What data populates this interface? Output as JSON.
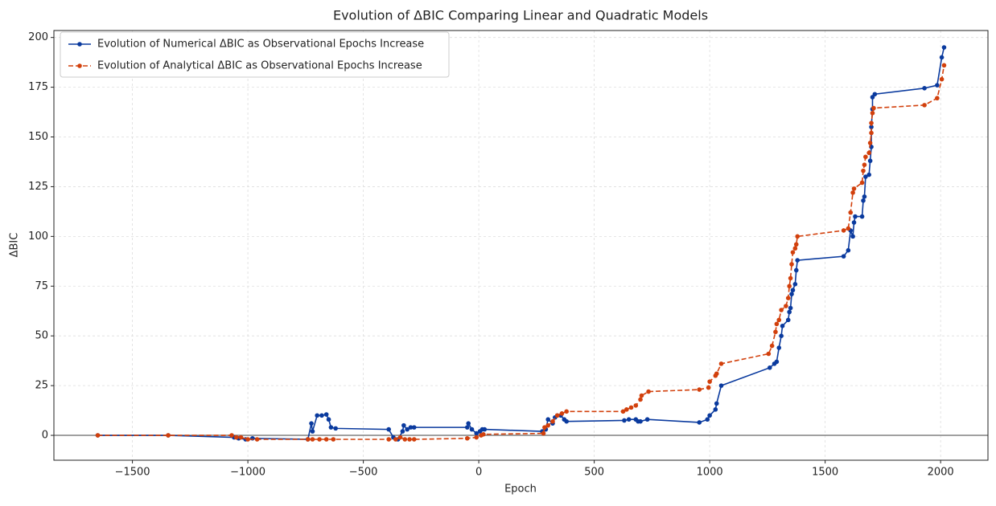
{
  "chart_data": {
    "type": "line",
    "title": "Evolution of ΔBIC Comparing Linear and Quadratic Models",
    "x_label": "Epoch",
    "y_label": "ΔBIC",
    "xlim": [
      -1840,
      2205
    ],
    "ylim": [
      -12.5,
      203.5
    ],
    "xticks": [
      {
        "value": -1500,
        "label": "−1500"
      },
      {
        "value": -1000,
        "label": "−1000"
      },
      {
        "value": -500,
        "label": "−500"
      },
      0,
      500,
      1000,
      1500,
      2000
    ],
    "yticks": [
      0,
      25,
      50,
      75,
      100,
      125,
      150,
      175,
      200
    ],
    "grid": true,
    "legend": "upper left",
    "hline": {
      "value": 0,
      "color": "#808080"
    },
    "series": [
      {
        "name": "Evolution of Numerical ΔBIC as Observational Epochs Increase",
        "color": "#0a3a9e",
        "dash": "solid",
        "x": [
          -1650,
          -1345,
          -1060,
          -1040,
          -1010,
          -980,
          -740,
          -725,
          -720,
          -700,
          -680,
          -660,
          -650,
          -640,
          -620,
          -390,
          -370,
          -350,
          -330,
          -325,
          -310,
          -295,
          -280,
          -50,
          -45,
          -30,
          -10,
          5,
          15,
          25,
          275,
          290,
          300,
          320,
          330,
          340,
          355,
          370,
          380,
          630,
          650,
          680,
          690,
          700,
          730,
          955,
          990,
          1000,
          1025,
          1030,
          1050,
          1260,
          1280,
          1290,
          1300,
          1310,
          1315,
          1340,
          1345,
          1350,
          1355,
          1360,
          1370,
          1375,
          1380,
          1580,
          1600,
          1610,
          1620,
          1625,
          1630,
          1660,
          1665,
          1670,
          1675,
          1690,
          1695,
          1700,
          1700,
          1705,
          1705,
          1715,
          1930,
          1985,
          2005,
          2015
        ],
        "values": [
          0,
          0,
          -1,
          -1.5,
          -2,
          -1.5,
          -2,
          6,
          2,
          10,
          10,
          10.5,
          8,
          4,
          3.5,
          3,
          -1,
          -2,
          2,
          5,
          3,
          4,
          4,
          4,
          6,
          3,
          1,
          2,
          3,
          3,
          2,
          3,
          8,
          6,
          9,
          10,
          10,
          8,
          7,
          7.5,
          8,
          8,
          7,
          7,
          8,
          6.5,
          8,
          10,
          13,
          16,
          25,
          34,
          36,
          37,
          44,
          50,
          55,
          58,
          62,
          64,
          71,
          73,
          76,
          83,
          88,
          90,
          93,
          103,
          100,
          107,
          110,
          110,
          118,
          120,
          130,
          131,
          138,
          145,
          155,
          164,
          170,
          171.5,
          174.5,
          176,
          190,
          195
        ]
      },
      {
        "name": "Evolution of Analytical ΔBIC as Observational Epochs Increase",
        "color": "#d2400c",
        "dash": "dashed",
        "x": [
          -1650,
          -1345,
          -1070,
          -1050,
          -1030,
          -1000,
          -960,
          -740,
          -720,
          -690,
          -660,
          -630,
          -390,
          -360,
          -340,
          -320,
          -300,
          -280,
          -50,
          -10,
          10,
          20,
          280,
          285,
          300,
          320,
          340,
          360,
          380,
          625,
          640,
          660,
          680,
          700,
          705,
          735,
          955,
          995,
          1000,
          1025,
          1030,
          1050,
          1255,
          1270,
          1285,
          1290,
          1300,
          1310,
          1330,
          1340,
          1345,
          1350,
          1355,
          1360,
          1370,
          1375,
          1380,
          1580,
          1600,
          1610,
          1620,
          1625,
          1660,
          1665,
          1670,
          1675,
          1690,
          1695,
          1700,
          1700,
          1705,
          1710,
          1930,
          1985,
          2005,
          2015
        ],
        "values": [
          0,
          0,
          0,
          -1,
          -1,
          -2,
          -2,
          -2,
          -2,
          -2,
          -2,
          -2,
          -2,
          -2,
          -1,
          -2,
          -2,
          -2,
          -1.5,
          -1,
          0,
          0.5,
          1,
          4,
          5,
          7,
          10,
          11,
          12,
          12,
          13,
          14,
          15,
          18,
          20,
          22,
          23,
          24,
          27,
          30,
          31,
          36,
          41,
          45,
          52,
          56,
          58,
          63,
          65,
          69,
          75,
          79,
          86,
          92,
          94,
          96,
          100,
          103,
          104,
          112,
          122,
          124,
          127,
          133,
          136,
          140,
          142,
          147,
          152,
          157,
          162,
          164.5,
          166,
          169.5,
          179,
          186
        ]
      }
    ]
  }
}
